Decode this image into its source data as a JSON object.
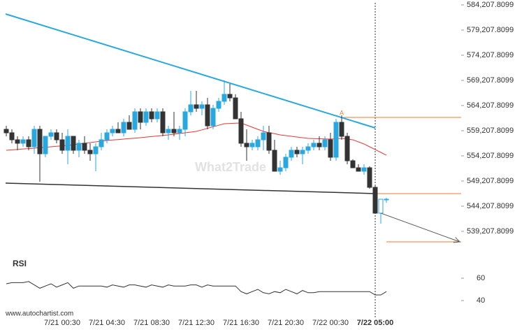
{
  "chart_data": {
    "type": "candlestick",
    "categories": [
      null,
      null,
      null,
      null,
      null,
      null,
      null,
      null,
      null,
      null,
      "7/21 00:30",
      null,
      null,
      null,
      null,
      null,
      null,
      null,
      "7/21 04:30",
      null,
      null,
      null,
      null,
      null,
      null,
      null,
      "7/21 08:30",
      null,
      null,
      null,
      null,
      null,
      null,
      null,
      "7/21 12:30",
      null,
      null,
      null,
      null,
      null,
      null,
      null,
      "7/21 16:30",
      null,
      null,
      null,
      null,
      null,
      null,
      null,
      "7/21 20:30",
      null,
      null,
      null,
      null,
      null,
      null,
      null,
      "7/22 00:30",
      null,
      null,
      null,
      null,
      null,
      null,
      null,
      "7/22 05:00",
      null,
      null
    ],
    "open": [
      559480,
      558790,
      557400,
      556710,
      557400,
      556010,
      559480,
      554620,
      558090,
      558790,
      557400,
      555320,
      558090,
      555320,
      556710,
      555320,
      554620,
      556010,
      557400,
      558790,
      559480,
      558790,
      560870,
      559480,
      562960,
      560870,
      562960,
      561570,
      562960,
      558790,
      559480,
      558790,
      559480,
      562960,
      564350,
      563650,
      564350,
      560180,
      563650,
      565040,
      566430,
      565730,
      561570,
      556710,
      556010,
      556010,
      557400,
      558790,
      555320,
      551150,
      551840,
      553930,
      555320,
      554620,
      555320,
      556010,
      556710,
      556010,
      557400,
      553930,
      560870,
      558090,
      553230,
      551840,
      551150,
      551840,
      547950,
      542820,
      545590
    ],
    "high": [
      560180,
      559480,
      558090,
      558090,
      558090,
      560180,
      560180,
      558090,
      559480,
      559480,
      558790,
      559480,
      558090,
      557400,
      558090,
      556710,
      556710,
      558790,
      559480,
      560180,
      560870,
      561570,
      562260,
      563650,
      563650,
      563650,
      563650,
      563650,
      563650,
      560180,
      562960,
      560180,
      563650,
      567120,
      567120,
      565040,
      565730,
      564350,
      565730,
      569210,
      568510,
      566430,
      562960,
      559480,
      557400,
      558090,
      560180,
      560180,
      557400,
      553230,
      554620,
      556010,
      556010,
      556010,
      556710,
      557400,
      558090,
      558090,
      558790,
      561570,
      562260,
      558790,
      553510,
      552540,
      552540,
      552120,
      548370,
      545590,
      545870
    ],
    "low": [
      558090,
      556710,
      555320,
      556010,
      555320,
      554620,
      549070,
      553930,
      557400,
      556710,
      554620,
      552540,
      554620,
      553930,
      554620,
      553230,
      551150,
      555320,
      556710,
      558090,
      558790,
      558090,
      559480,
      558790,
      559480,
      560180,
      560870,
      560870,
      558090,
      557400,
      558090,
      557400,
      558090,
      562260,
      562960,
      562260,
      559480,
      559480,
      562960,
      564350,
      565040,
      561570,
      556010,
      553230,
      555320,
      555320,
      555320,
      554620,
      551150,
      550460,
      551150,
      553230,
      553930,
      552540,
      554620,
      555320,
      555320,
      555320,
      553230,
      553230,
      557400,
      552540,
      551840,
      551150,
      550460,
      547680,
      542820,
      540730,
      544900
    ],
    "close": [
      558790,
      557400,
      556710,
      557400,
      556010,
      559480,
      554620,
      558090,
      558790,
      557400,
      555320,
      558090,
      555320,
      556710,
      555320,
      554620,
      556010,
      557400,
      558790,
      559480,
      558790,
      560870,
      559480,
      562960,
      560870,
      562960,
      561570,
      562960,
      558790,
      559480,
      558790,
      559480,
      562960,
      564350,
      563650,
      564350,
      560180,
      563650,
      565040,
      566430,
      565730,
      561570,
      556710,
      556010,
      556710,
      557400,
      558790,
      555320,
      551150,
      551840,
      553930,
      555320,
      554620,
      555320,
      556010,
      556710,
      556010,
      557400,
      553930,
      560870,
      558090,
      553230,
      551840,
      551150,
      551840,
      547950,
      542820,
      545590,
      545590
    ],
    "up_color": "#29a8e0",
    "down_color": "#333333",
    "ma": {
      "color": "#e53935",
      "values": [
        555320,
        555400,
        555480,
        555570,
        555650,
        555730,
        555830,
        555910,
        556010,
        556110,
        556190,
        556290,
        556430,
        556570,
        556710,
        556850,
        556980,
        557120,
        557260,
        557360,
        557440,
        557540,
        557640,
        557720,
        557820,
        557930,
        558040,
        558150,
        558260,
        558370,
        558510,
        558650,
        558790,
        558930,
        559070,
        559370,
        559680,
        559980,
        560290,
        560600,
        560640,
        560690,
        560730,
        560320,
        559900,
        559480,
        559070,
        558830,
        558610,
        558370,
        558230,
        558100,
        557960,
        557820,
        557680,
        557640,
        557610,
        557570,
        557540,
        557610,
        557680,
        557540,
        557400,
        556980,
        556570,
        556010,
        555460,
        554900,
        554340
      ]
    },
    "resistance": {
      "color": "#29a8e0",
      "values": [
        582400,
        559760
      ]
    },
    "support": {
      "color": "#333333",
      "values": [
        548790,
        546710
      ]
    },
    "levels": {
      "color": "#f07b2e",
      "values": [
        561850,
        546710,
        537120
      ]
    },
    "forecast": {
      "color": "#555555",
      "values": [
        542820,
        537120
      ]
    },
    "pattern_label": "A",
    "watermark": "What2Trade",
    "source": "www.autochartist.com",
    "ylim": [
      534480,
      585180
    ],
    "yticks": [
      {
        "value": 584207.8099,
        "label": "584,207.8099"
      },
      {
        "value": 579207.8099,
        "label": "579,207.8099"
      },
      {
        "value": 574207.8099,
        "label": "574,207.8099"
      },
      {
        "value": 569207.8099,
        "label": "569,207.8099"
      },
      {
        "value": 564207.8099,
        "label": "564,207.8099"
      },
      {
        "value": 559207.8099,
        "label": "559,207.8099"
      },
      {
        "value": 554207.8099,
        "label": "554,207.8099"
      },
      {
        "value": 549207.8099,
        "label": "549,207.8099"
      },
      {
        "value": 544207.8099,
        "label": "544,207.8099"
      },
      {
        "value": 539207.8099,
        "label": "539,207.8099"
      }
    ],
    "rsi": {
      "title": "RSI",
      "color": "#333333",
      "values": [
        55,
        56,
        56,
        56,
        57,
        54,
        51,
        53,
        55,
        52,
        54,
        56,
        51,
        53,
        53,
        53,
        53,
        53,
        52,
        54,
        53,
        52,
        54,
        54,
        53,
        52,
        54,
        53,
        52,
        54,
        53,
        53,
        53,
        54,
        54,
        52,
        54,
        53,
        53,
        53,
        53,
        53,
        48,
        46,
        48,
        50,
        47,
        46,
        48,
        47,
        50,
        48,
        46,
        49,
        47,
        47,
        48,
        48,
        48,
        48,
        48,
        48,
        48,
        48,
        48,
        48,
        45,
        45,
        48
      ],
      "ylim": [
        33.75,
        65
      ],
      "yticks": [
        60,
        40
      ]
    }
  }
}
